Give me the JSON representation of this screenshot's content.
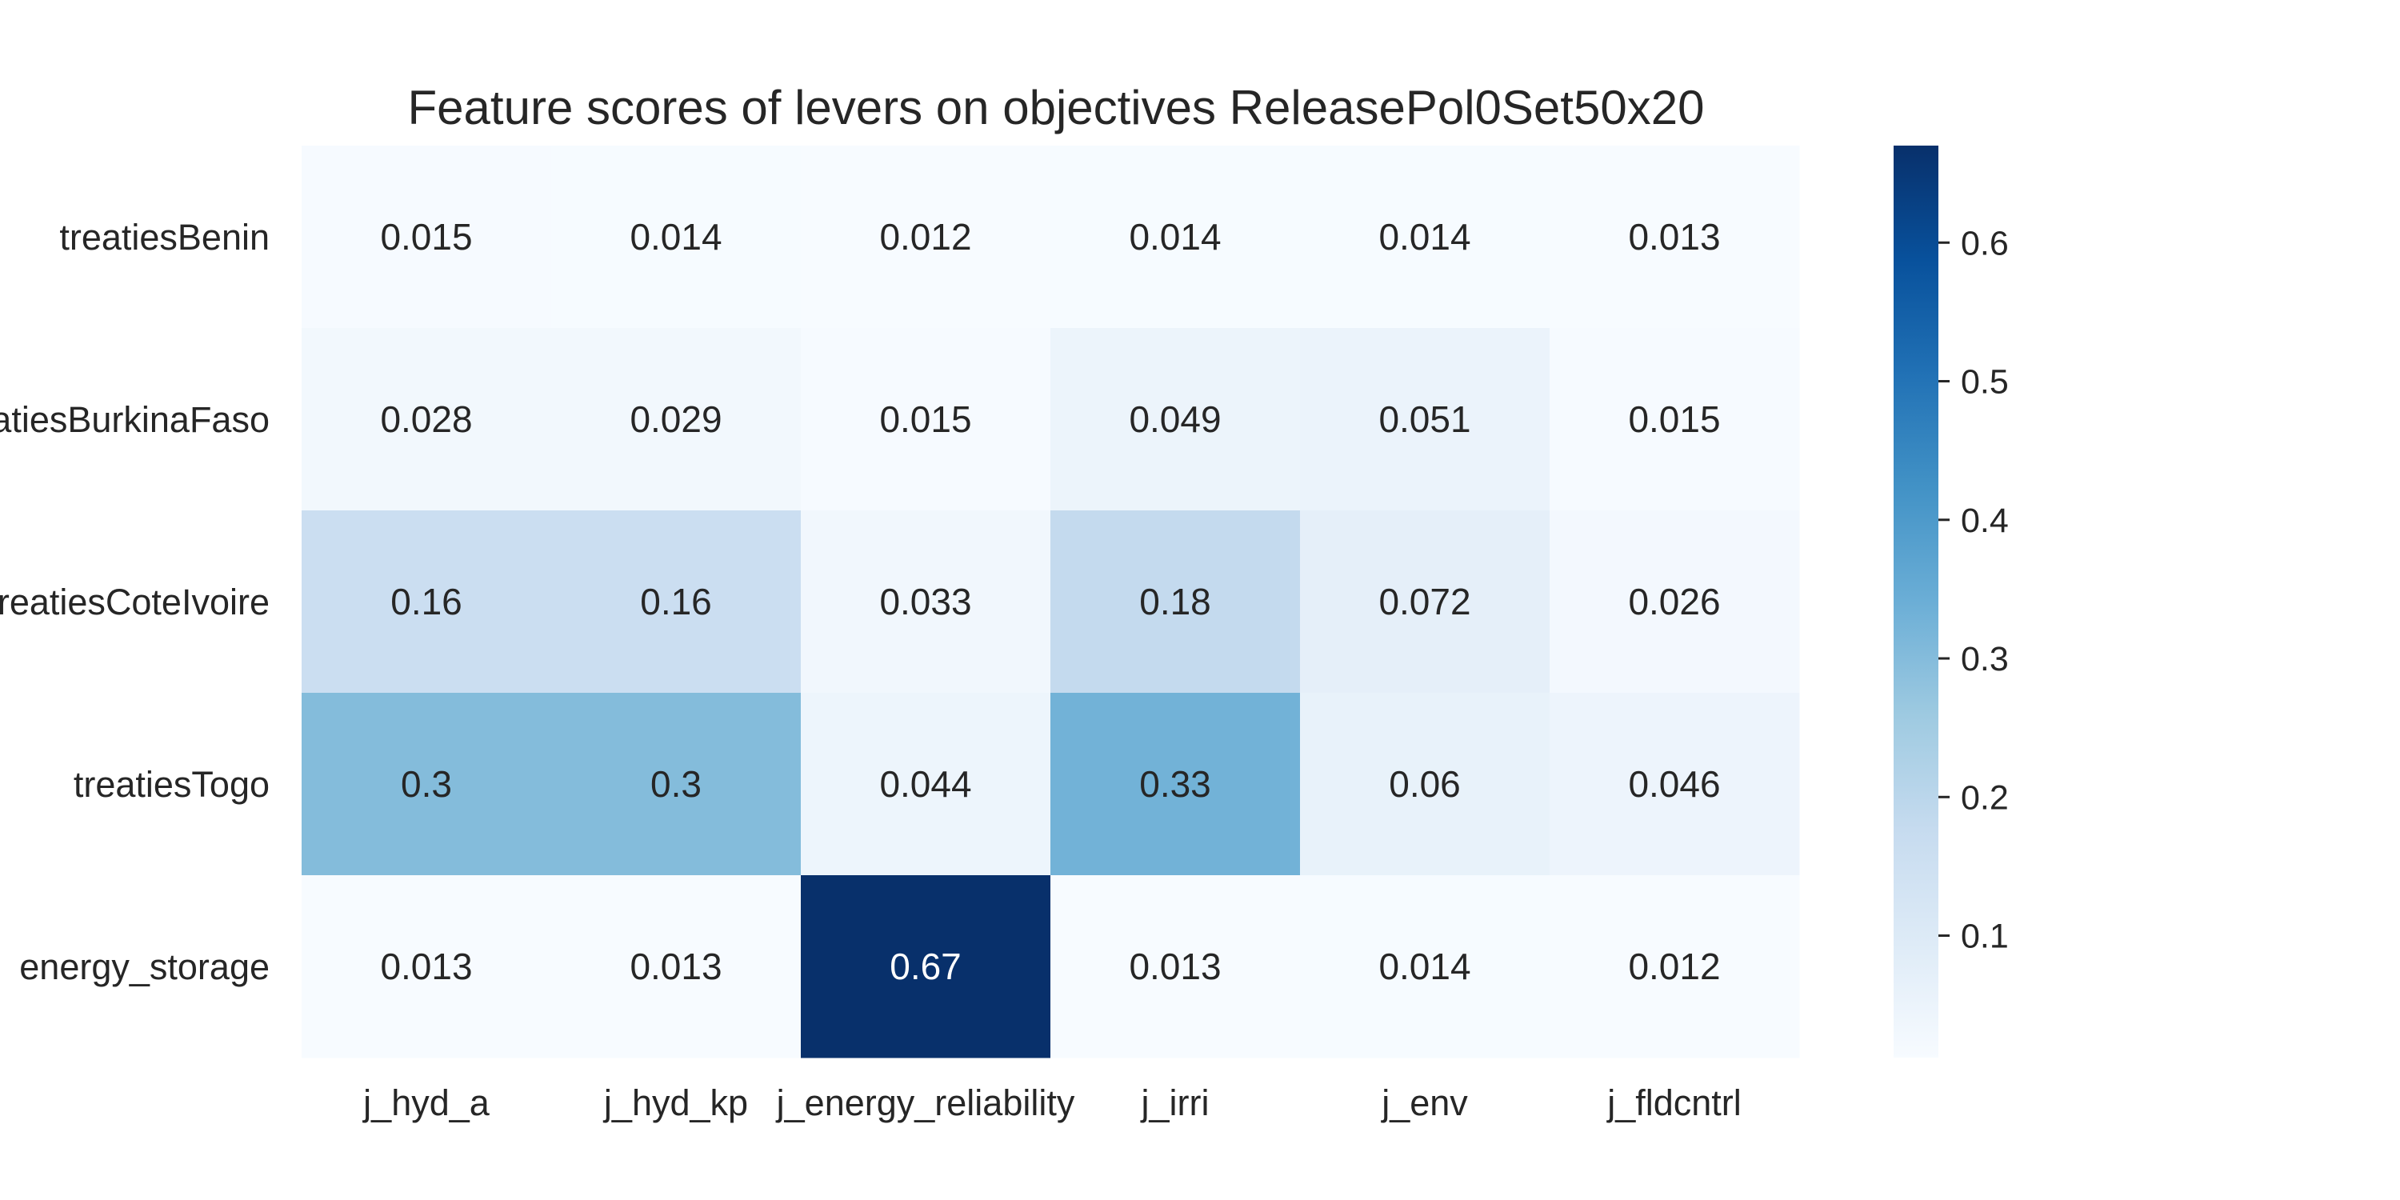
{
  "chart_data": {
    "type": "heatmap",
    "title": "Feature scores of levers on objectives ReleasePol0Set50x20",
    "rows": [
      "treatiesBenin",
      "treatiesBurkinaFaso",
      "treatiesCoteIvoire",
      "treatiesTogo",
      "energy_storage"
    ],
    "columns": [
      "j_hyd_a",
      "j_hyd_kp",
      "j_energy_reliability",
      "j_irri",
      "j_env",
      "j_fldcntrl"
    ],
    "values": [
      [
        0.015,
        0.014,
        0.012,
        0.014,
        0.014,
        0.013
      ],
      [
        0.028,
        0.029,
        0.015,
        0.049,
        0.051,
        0.015
      ],
      [
        0.16,
        0.16,
        0.033,
        0.18,
        0.072,
        0.026
      ],
      [
        0.3,
        0.3,
        0.044,
        0.33,
        0.06,
        0.046
      ],
      [
        0.013,
        0.013,
        0.67,
        0.013,
        0.014,
        0.012
      ]
    ],
    "value_labels": [
      [
        "0.015",
        "0.014",
        "0.012",
        "0.014",
        "0.014",
        "0.013"
      ],
      [
        "0.028",
        "0.029",
        "0.015",
        "0.049",
        "0.051",
        "0.015"
      ],
      [
        "0.16",
        "0.16",
        "0.033",
        "0.18",
        "0.072",
        "0.026"
      ],
      [
        "0.3",
        "0.3",
        "0.044",
        "0.33",
        "0.06",
        "0.046"
      ],
      [
        "0.013",
        "0.013",
        "0.67",
        "0.013",
        "0.014",
        "0.012"
      ]
    ],
    "colorbar": {
      "colormap": "Blues",
      "range": [
        0.012,
        0.67
      ],
      "ticks": [
        0.1,
        0.2,
        0.3,
        0.4,
        0.5,
        0.6
      ],
      "tick_labels": [
        "0.1",
        "0.2",
        "0.3",
        "0.4",
        "0.5",
        "0.6"
      ]
    }
  }
}
